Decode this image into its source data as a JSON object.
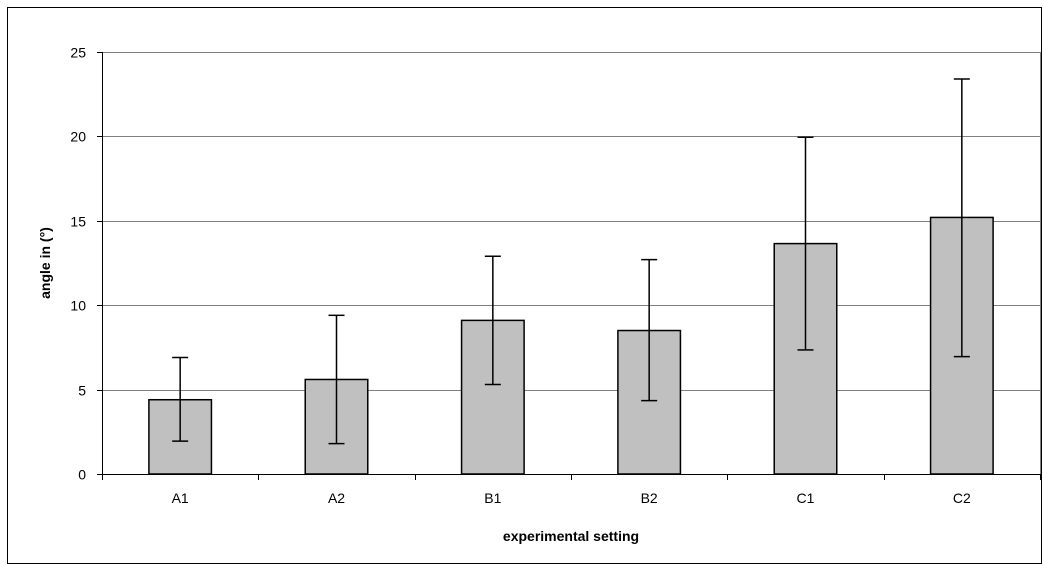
{
  "chart_data": {
    "type": "bar",
    "categories": [
      "A1",
      "A2",
      "B1",
      "B2",
      "C1",
      "C2"
    ],
    "values": [
      4.4,
      5.6,
      9.1,
      8.5,
      13.65,
      15.2
    ],
    "error_low": [
      1.95,
      1.8,
      5.3,
      4.35,
      7.35,
      6.95
    ],
    "error_high": [
      6.9,
      9.4,
      12.9,
      12.7,
      19.95,
      23.4
    ],
    "title": "",
    "xlabel": "experimental setting",
    "ylabel": "angle in (°)",
    "ylim": [
      0,
      25
    ],
    "yticks": [
      0,
      5,
      10,
      15,
      20,
      25
    ],
    "grid": "horizontal",
    "legend": "none",
    "bar_color": "#c0c0c0",
    "edge_color": "#000000",
    "grid_color": "#808080"
  }
}
